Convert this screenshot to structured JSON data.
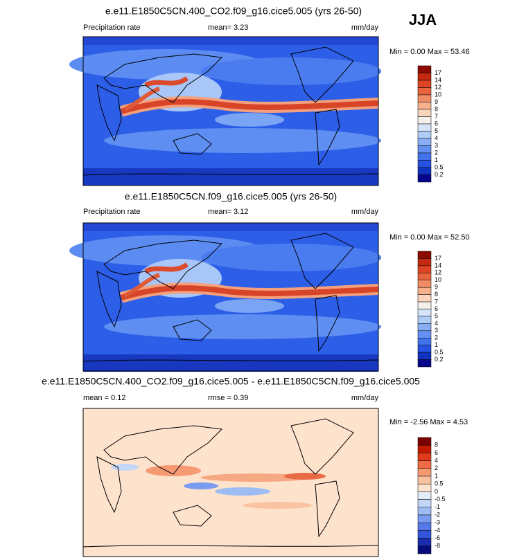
{
  "season": "JJA",
  "panels": [
    {
      "title": "e.e11.E1850C5CN.400_CO2.f09_g16.cice5.005 (yrs 26-50)",
      "left": "Precipitation rate",
      "center": "mean=  3.23",
      "right": "mm/day",
      "range": "Min =  0.00 Max =  53.46",
      "colorbar": {
        "labels": [
          "17",
          "14",
          "12",
          "10",
          "9",
          "8",
          "7",
          "6",
          "5",
          "4",
          "3",
          "2",
          "1",
          "0.5",
          "0.2"
        ],
        "colors": [
          "#8c0a00",
          "#c42a10",
          "#dc4424",
          "#e8643e",
          "#f08c64",
          "#f6b08c",
          "#fad4bc",
          "#f4f0ec",
          "#d6e4fa",
          "#b0ccf8",
          "#88aef6",
          "#6490f2",
          "#4272ec",
          "#2652e2",
          "#1032c0",
          "#06068a"
        ]
      }
    },
    {
      "title": "e.e11.E1850C5CN.f09_g16.cice5.005 (yrs 26-50)",
      "left": "Precipitation rate",
      "center": "mean=  3.12",
      "right": "mm/day",
      "range": "Min =  0.00 Max =  52.50",
      "colorbar": {
        "labels": [
          "17",
          "14",
          "12",
          "10",
          "9",
          "8",
          "7",
          "6",
          "5",
          "4",
          "3",
          "2",
          "1",
          "0.5",
          "0.2"
        ],
        "colors": [
          "#8c0a00",
          "#c42a10",
          "#dc4424",
          "#e8643e",
          "#f08c64",
          "#f6b08c",
          "#fad4bc",
          "#f4f0ec",
          "#d6e4fa",
          "#b0ccf8",
          "#88aef6",
          "#6490f2",
          "#4272ec",
          "#2652e2",
          "#1032c0",
          "#06068a"
        ]
      }
    },
    {
      "title": "e.e11.E1850C5CN.400_CO2.f09_g16.cice5.005 - e.e11.E1850C5CN.f09_g16.cice5.005",
      "left": "mean =  0.12",
      "center": "rmse =  0.39",
      "right": "mm/day",
      "range": "Min = -2.56 Max =  4.53",
      "colorbar": {
        "labels": [
          "8",
          "6",
          "4",
          "2",
          "1",
          "0.5",
          "0",
          "-0.5",
          "-1",
          "-2",
          "-3",
          "-4",
          "-6",
          "-8"
        ],
        "colors": [
          "#7a0000",
          "#c01a00",
          "#e03c1c",
          "#f06a44",
          "#f69a74",
          "#fbc2a2",
          "#fde2cc",
          "#e4ecfa",
          "#c4d6f8",
          "#9ebcf4",
          "#7a9cf0",
          "#5478e8",
          "#3254d8",
          "#1a2cb0",
          "#060a7a"
        ]
      }
    }
  ]
}
